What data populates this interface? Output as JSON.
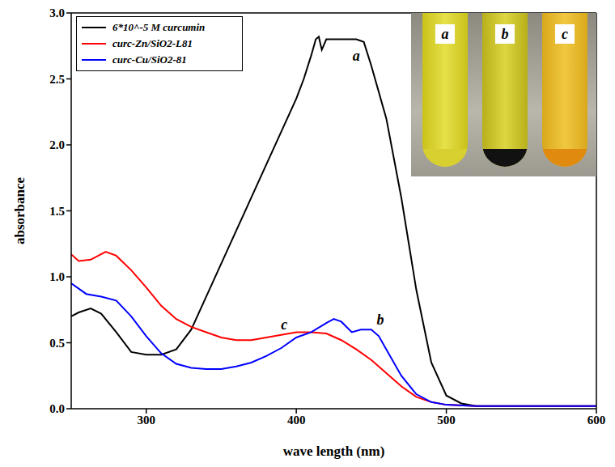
{
  "chart_data": {
    "type": "line",
    "x_label": "wave length (nm)",
    "y_label": "absorbance",
    "xlim": [
      250,
      600
    ],
    "xticks": [
      300,
      400,
      500,
      600
    ],
    "ylim": [
      0,
      3.0
    ],
    "yticks": [
      {
        "value": 0,
        "label": "0.0"
      },
      {
        "value": 0.5,
        "label": "0.5"
      },
      {
        "value": 1,
        "label": "1.0"
      },
      {
        "value": 1.5,
        "label": "1.5"
      },
      {
        "value": 2,
        "label": "2.0"
      },
      {
        "value": 2.5,
        "label": "2.5"
      },
      {
        "value": 3,
        "label": "3.0"
      }
    ],
    "grid": false,
    "legend": "top-left",
    "series": [
      {
        "name": "6*10^-5 M curcumin",
        "color": "#000000",
        "x": [
          250,
          255,
          263,
          270,
          280,
          290,
          300,
          310,
          320,
          330,
          340,
          350,
          360,
          370,
          380,
          390,
          400,
          405,
          410,
          413,
          415,
          417,
          420,
          430,
          440,
          445,
          450,
          460,
          470,
          480,
          490,
          500,
          510,
          520,
          550,
          600
        ],
        "values": [
          0.7,
          0.73,
          0.76,
          0.72,
          0.58,
          0.43,
          0.41,
          0.41,
          0.45,
          0.6,
          0.85,
          1.1,
          1.35,
          1.6,
          1.85,
          2.1,
          2.35,
          2.5,
          2.68,
          2.8,
          2.82,
          2.72,
          2.8,
          2.8,
          2.8,
          2.78,
          2.6,
          2.2,
          1.6,
          0.9,
          0.35,
          0.1,
          0.04,
          0.02,
          0.02,
          0.02
        ]
      },
      {
        "name": "curc-Zn/SiO2-L81",
        "color": "#ff0000",
        "x": [
          250,
          255,
          263,
          273,
          280,
          290,
          300,
          310,
          320,
          330,
          340,
          350,
          360,
          370,
          380,
          390,
          400,
          410,
          420,
          430,
          440,
          450,
          460,
          470,
          480,
          490,
          500,
          520,
          600
        ],
        "values": [
          1.17,
          1.12,
          1.13,
          1.19,
          1.16,
          1.05,
          0.92,
          0.78,
          0.68,
          0.62,
          0.58,
          0.54,
          0.52,
          0.52,
          0.54,
          0.56,
          0.58,
          0.58,
          0.57,
          0.52,
          0.45,
          0.37,
          0.27,
          0.17,
          0.09,
          0.05,
          0.03,
          0.02,
          0.02
        ]
      },
      {
        "name": "curc-Cu/SiO2-81",
        "color": "#0000ff",
        "x": [
          250,
          260,
          270,
          280,
          290,
          300,
          310,
          320,
          330,
          340,
          350,
          360,
          370,
          380,
          390,
          400,
          410,
          420,
          425,
          430,
          437,
          443,
          450,
          455,
          460,
          470,
          480,
          490,
          500,
          520,
          600
        ],
        "values": [
          0.95,
          0.87,
          0.85,
          0.82,
          0.7,
          0.55,
          0.42,
          0.34,
          0.31,
          0.3,
          0.3,
          0.32,
          0.35,
          0.4,
          0.46,
          0.54,
          0.58,
          0.65,
          0.68,
          0.66,
          0.58,
          0.6,
          0.6,
          0.55,
          0.45,
          0.25,
          0.11,
          0.05,
          0.03,
          0.02,
          0.02
        ]
      }
    ],
    "annotations": [
      {
        "text": "a",
        "x": 440,
        "y": 2.68
      },
      {
        "text": "b",
        "x": 456,
        "y": 0.68
      },
      {
        "text": "c",
        "x": 392,
        "y": 0.64
      }
    ],
    "inset": {
      "labels": [
        "a",
        "b",
        "c"
      ]
    }
  }
}
